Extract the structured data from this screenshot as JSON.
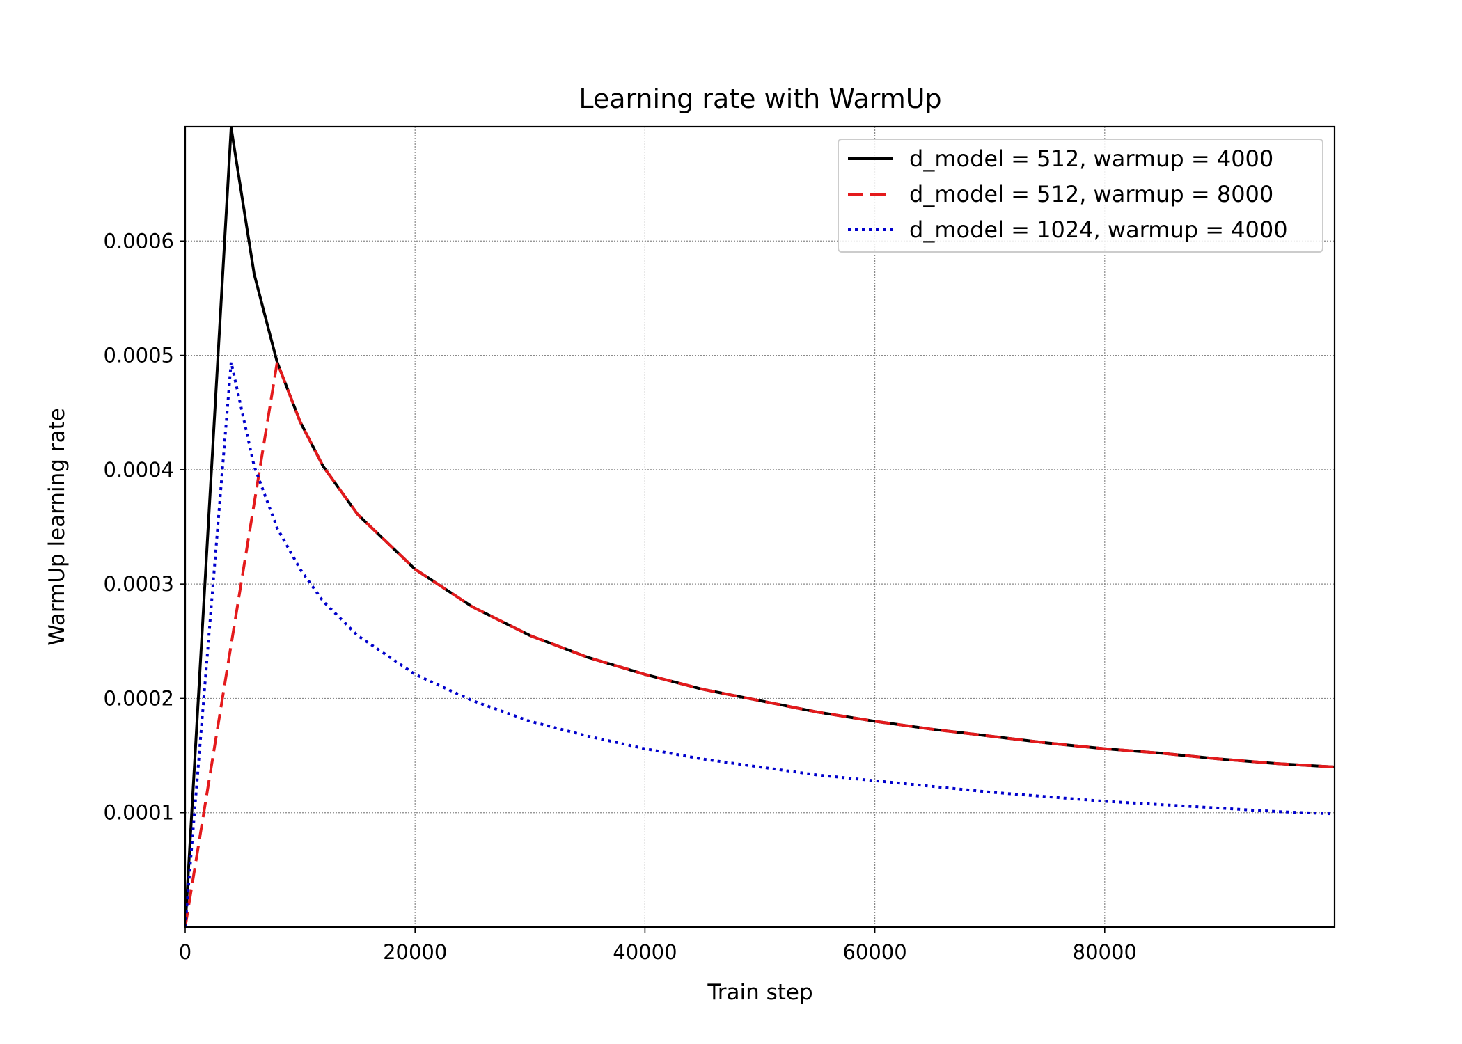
{
  "chart_data": {
    "type": "line",
    "title": "Learning rate with WarmUp",
    "xlabel": "Train step",
    "ylabel": "WarmUp learning rate",
    "xlim": [
      0,
      100000
    ],
    "ylim": [
      0,
      0.0007
    ],
    "xticks": [
      0,
      20000,
      40000,
      60000,
      80000
    ],
    "xtick_labels": [
      "0",
      "20000",
      "40000",
      "60000",
      "80000"
    ],
    "yticks": [
      0.0001,
      0.0002,
      0.0003,
      0.0004,
      0.0005,
      0.0006
    ],
    "ytick_labels": [
      "0.0001",
      "0.0002",
      "0.0003",
      "0.0004",
      "0.0005",
      "0.0006"
    ],
    "grid": true,
    "legend_position": "top-right",
    "series": [
      {
        "name": "d_model = 512, warmup = 4000",
        "color": "#000000",
        "style": "solid",
        "x": [
          0,
          4000,
          6000,
          8000,
          10000,
          12000,
          15000,
          20000,
          25000,
          30000,
          35000,
          40000,
          45000,
          50000,
          55000,
          60000,
          65000,
          70000,
          75000,
          80000,
          85000,
          90000,
          95000,
          100000
        ],
        "values": [
          0,
          0.000699,
          0.000571,
          0.000494,
          0.000442,
          0.000403,
          0.000361,
          0.000313,
          0.00028,
          0.000255,
          0.000236,
          0.000221,
          0.000208,
          0.000198,
          0.000188,
          0.00018,
          0.000173,
          0.000167,
          0.000161,
          0.000156,
          0.000152,
          0.000147,
          0.000143,
          0.00014
        ]
      },
      {
        "name": "d_model = 512, warmup = 8000",
        "color": "#e41a1c",
        "style": "dashed",
        "x": [
          0,
          8000,
          10000,
          12000,
          15000,
          20000,
          25000,
          30000,
          35000,
          40000,
          45000,
          50000,
          55000,
          60000,
          65000,
          70000,
          75000,
          80000,
          85000,
          90000,
          95000,
          100000
        ],
        "values": [
          0,
          0.000494,
          0.000442,
          0.000403,
          0.000361,
          0.000313,
          0.00028,
          0.000255,
          0.000236,
          0.000221,
          0.000208,
          0.000198,
          0.000188,
          0.00018,
          0.000173,
          0.000167,
          0.000161,
          0.000156,
          0.000152,
          0.000147,
          0.000143,
          0.00014
        ]
      },
      {
        "name": "d_model = 1024, warmup = 4000",
        "color": "#0000cc",
        "style": "dotted",
        "x": [
          0,
          4000,
          6000,
          8000,
          10000,
          12000,
          15000,
          20000,
          25000,
          30000,
          35000,
          40000,
          45000,
          50000,
          55000,
          60000,
          65000,
          70000,
          75000,
          80000,
          85000,
          90000,
          95000,
          100000
        ],
        "values": [
          0,
          0.000494,
          0.000403,
          0.000349,
          0.000313,
          0.000285,
          0.000255,
          0.000221,
          0.000198,
          0.00018,
          0.000167,
          0.000156,
          0.000147,
          0.00014,
          0.000133,
          0.000128,
          0.000123,
          0.000118,
          0.000114,
          0.00011,
          0.000107,
          0.000104,
          0.000101,
          9.9e-05
        ]
      }
    ]
  }
}
